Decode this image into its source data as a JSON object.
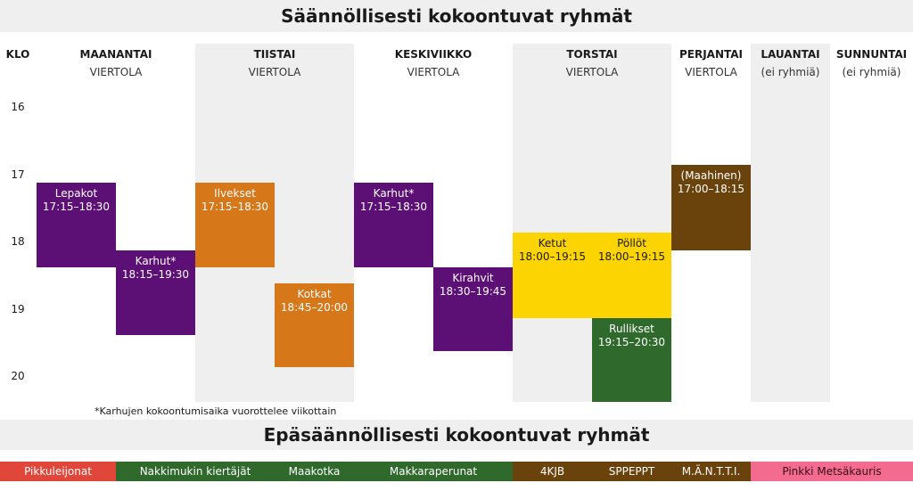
{
  "title_regular": "Säännöllisesti kokoontuvat ryhmät",
  "title_irregular": "Epäsäännöllisesti kokoontuvat ryhmät",
  "klo_label": "KLO",
  "hours": [
    "16",
    "17",
    "18",
    "19",
    "20"
  ],
  "days": [
    {
      "name": "MAANANTAI",
      "location": "VIERTOLA"
    },
    {
      "name": "TIISTAI",
      "location": "VIERTOLA"
    },
    {
      "name": "KESKIVIIKKO",
      "location": "VIERTOLA"
    },
    {
      "name": "TORSTAI",
      "location": "VIERTOLA"
    },
    {
      "name": "PERJANTAI",
      "location": "VIERTOLA"
    },
    {
      "name": "LAUANTAI",
      "location": "(ei ryhmiä)"
    },
    {
      "name": "SUNNUNTAI",
      "location": "(ei ryhmiä)"
    }
  ],
  "events": [
    {
      "name": "Lepakot",
      "time": "17:15–18:30",
      "color": "#5c0f74"
    },
    {
      "name": "Karhut*",
      "time": "18:15–19:30",
      "color": "#5c0f74"
    },
    {
      "name": "Ilvekset",
      "time": "17:15–18:30",
      "color": "#d6771a"
    },
    {
      "name": "Kotkat",
      "time": "18:45–20:00",
      "color": "#d6771a"
    },
    {
      "name": "Karhut*",
      "time": "17:15–18:30",
      "color": "#5c0f74"
    },
    {
      "name": "Kirahvit",
      "time": "18:30–19:45",
      "color": "#5c0f74"
    },
    {
      "name": "Ketut",
      "time": "18:00–19:15",
      "color": "#fcd402"
    },
    {
      "name": "Pöllöt",
      "time": "18:00–19:15",
      "color": "#fcd402"
    },
    {
      "name": "Rullikset",
      "time": "19:15–20:30",
      "color": "#2f6a2c"
    },
    {
      "name": "(Maahinen)",
      "time": "17:00–18:15",
      "color": "#6a430c"
    }
  ],
  "footnote": "*Karhujen kokoontumisaika vuorottelee viikottain",
  "irregular_groups": [
    {
      "name": "Pikkuleijonat",
      "color": "#e0463a"
    },
    {
      "name": "Nakkimukin kiertäjät",
      "color": "#2f6a2c"
    },
    {
      "name": "Maakotka",
      "color": "#2f6a2c"
    },
    {
      "name": "Makkaraperunat",
      "color": "#2f6a2c"
    },
    {
      "name": "4KJB",
      "color": "#6a430c"
    },
    {
      "name": "SPPEPPT",
      "color": "#6a430c"
    },
    {
      "name": "M.Ä.N.T.T.I.",
      "color": "#6a430c"
    },
    {
      "name": "Pinkki Metsäkauris",
      "color": "#f36b8f"
    }
  ]
}
